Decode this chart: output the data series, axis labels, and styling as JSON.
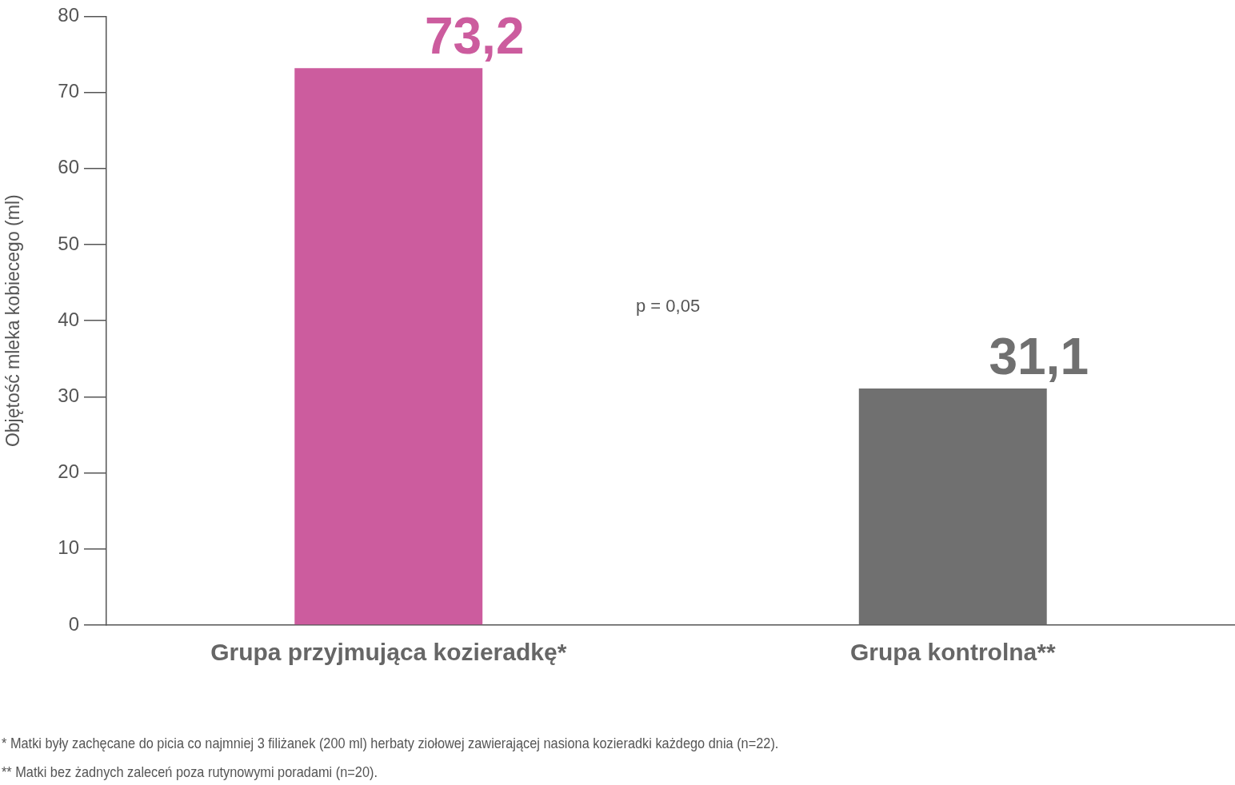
{
  "chart_data": {
    "type": "bar",
    "ylabel": "Objętość mleka kobiecego (ml)",
    "categories": [
      "Grupa przyjmująca kozieradkę*",
      "Grupa kontrolna**"
    ],
    "values": [
      73.2,
      31.1
    ],
    "colors": [
      "#cc5c9e",
      "#707070"
    ],
    "value_labels": [
      "73,2",
      "31,1"
    ],
    "ylim": [
      0,
      80
    ],
    "yticks": [
      0,
      10,
      20,
      30,
      40,
      50,
      60,
      70,
      80
    ],
    "grid": false,
    "legend": false,
    "annotations": [
      "p = 0,05",
      "* Matki były zachęcane do picia co najmniej 3 filiżanek (200 ml) herbaty ziołowej zawierającej nasiona kozieradki każdego dnia (n=22).",
      "** Matki bez żadnych zaleceń poza rutynowymi poradami (n=20)."
    ]
  }
}
